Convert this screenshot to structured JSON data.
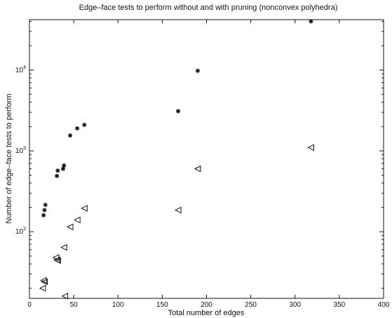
{
  "chart_data": {
    "type": "scatter",
    "title": "Edge–face tests to perform without and with pruning (nonconvex polyhedra)",
    "xlabel": "Total number of edges",
    "ylabel": "Number of edge–face tests to perform",
    "xlim": [
      0,
      400
    ],
    "ylim": [
      15,
      42000
    ],
    "yscale": "log",
    "grid": false,
    "legend": null,
    "x_ticks": [
      0,
      50,
      100,
      150,
      200,
      250,
      300,
      350,
      400
    ],
    "x_tick_labels": [
      "0",
      "50",
      "100",
      "150",
      "200",
      "250",
      "300",
      "350",
      "400"
    ],
    "y_ticks": [
      100,
      1000,
      10000
    ],
    "y_tick_labels": [
      {
        "base": "10",
        "exp": "2"
      },
      {
        "base": "10",
        "exp": "3"
      },
      {
        "base": "10",
        "exp": "4"
      }
    ],
    "series": [
      {
        "marker": "asterisk",
        "color": "#111111",
        "points": [
          [
            16,
            160
          ],
          [
            17,
            185
          ],
          [
            18,
            215
          ],
          [
            31,
            490
          ],
          [
            32,
            570
          ],
          [
            38,
            600
          ],
          [
            39,
            660
          ],
          [
            46,
            1550
          ],
          [
            54,
            1900
          ],
          [
            62,
            2100
          ],
          [
            168,
            3100
          ],
          [
            190,
            9800
          ],
          [
            318,
            40000
          ]
        ]
      },
      {
        "marker": "triangle-left",
        "color": "#111111",
        "points": [
          [
            15,
            20
          ],
          [
            16,
            25
          ],
          [
            17,
            24
          ],
          [
            30,
            48
          ],
          [
            31,
            45
          ],
          [
            32,
            44
          ],
          [
            39,
            64
          ],
          [
            40,
            16
          ],
          [
            46,
            115
          ],
          [
            54,
            140
          ],
          [
            62,
            195
          ],
          [
            168,
            185
          ],
          [
            190,
            600
          ],
          [
            318,
            1100
          ]
        ]
      }
    ]
  }
}
